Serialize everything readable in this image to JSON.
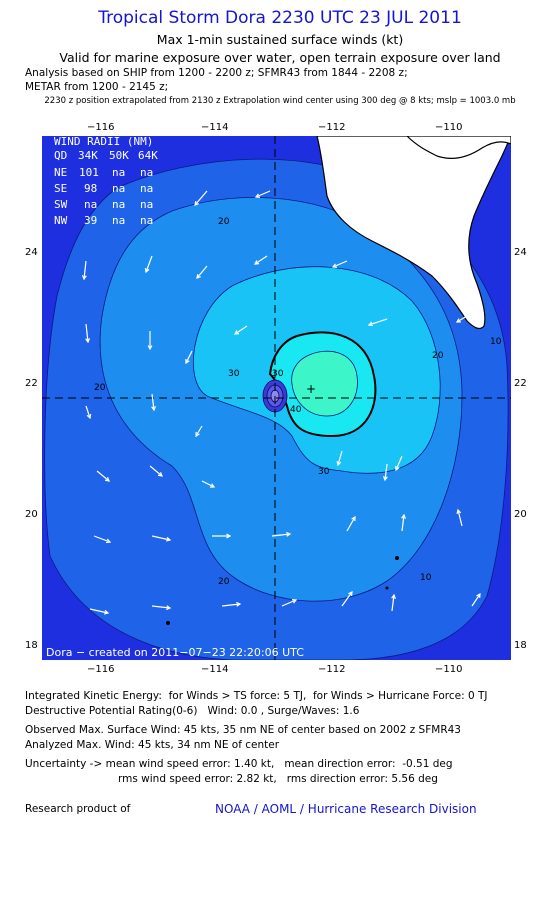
{
  "header": {
    "title": "Tropical Storm Dora 2230 UTC 23 JUL 2011",
    "subtitle1": "Max 1-min sustained surface winds (kt)",
    "subtitle2": "Valid for marine exposure over water, open terrain exposure over land",
    "analysis1": "Analysis based on SHIP from 1200 - 2200 z; SFMR43 from 1844 - 2208 z;",
    "analysis2": "METAR from 1200 - 2145 z;",
    "position_note": "2230 z position extrapolated from 2130 z Extrapolation wind center using 300 deg @ 8 kts; mslp = 1003.0 mb"
  },
  "axes": {
    "lon_ticks": [
      "−116",
      "−114",
      "−112",
      "−110"
    ],
    "lat_ticks": [
      "24",
      "22",
      "20",
      "18"
    ]
  },
  "wind_radii": {
    "title": "WIND RADII (NM)",
    "header": [
      "QD",
      "34K",
      "50K",
      "64K"
    ],
    "rows": [
      [
        "NE",
        "101",
        "na",
        "na"
      ],
      [
        "SE",
        "98",
        "na",
        "na"
      ],
      [
        "SW",
        "na",
        "na",
        "na"
      ],
      [
        "NW",
        "39",
        "na",
        "na"
      ]
    ]
  },
  "contour_labels": [
    "20",
    "20",
    "20",
    "30",
    "40",
    "30",
    "20",
    "10",
    "10",
    "30"
  ],
  "footer_map": "Dora − created on 2011−07−23 22:20:06 UTC",
  "colors": {
    "bg_outer": "#1e2fe0",
    "level10": "#1f63e8",
    "level20": "#1d8df0",
    "level30": "#19c3f5",
    "level40": "#19e8f3",
    "core": "#3cf5c8",
    "land": "#ffffff"
  },
  "info": {
    "ike": "Integrated Kinetic Energy:  for Winds > TS force: 5 TJ,  for Winds > Hurricane Force: 0 TJ",
    "dpr": "Destructive Potential Rating(0-6)   Wind: 0.0 , Surge/Waves: 1.6",
    "obs": "Observed Max. Surface Wind: 45 kts, 35 nm NE of center based on 2002 z SFMR43",
    "analyzed": "Analyzed Max. Wind: 45 kts, 34 nm NE of center",
    "unc1": "Uncertainty -> mean wind speed error: 1.40 kt,   mean direction error:  -0.51 deg",
    "unc2": "rms wind speed error: 2.82 kt,   rms direction error: 5.56 deg",
    "research": "Research product of",
    "org": "NOAA / AOML / Hurricane Research Division"
  }
}
